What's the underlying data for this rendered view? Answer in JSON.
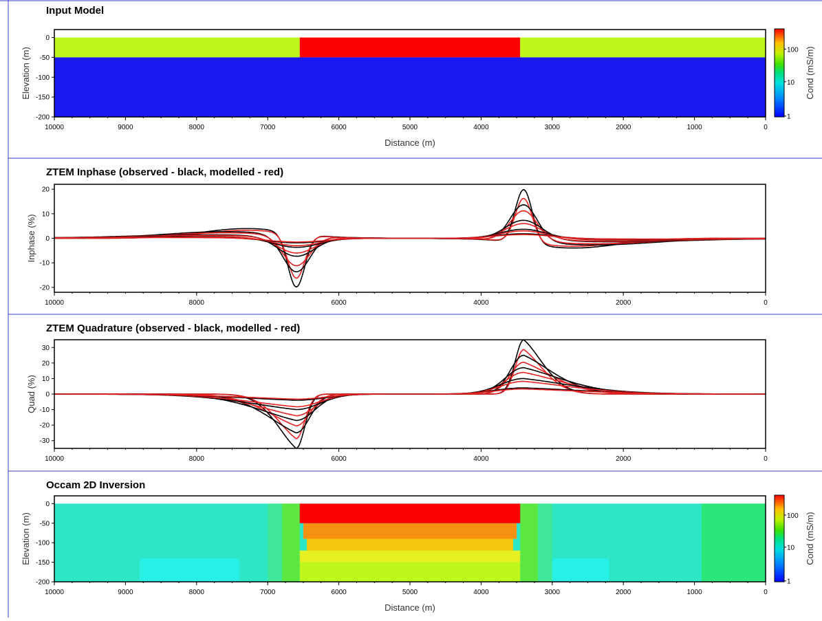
{
  "chart_data": [
    {
      "type": "heatmap",
      "title": "Input Model",
      "xlabel": "Distance (m)",
      "ylabel": "Elevation (m)",
      "xlim": [
        10000,
        0
      ],
      "ylim": [
        -200,
        20
      ],
      "xticks": [
        10000,
        9000,
        8000,
        7000,
        6000,
        5000,
        4000,
        3000,
        2000,
        1000,
        0
      ],
      "yticks": [
        0,
        -50,
        -100,
        -150,
        -200
      ],
      "colorbar": {
        "label": "Cond (mS/m)",
        "ticks": [
          "100",
          "10",
          "1"
        ],
        "scale": "log"
      },
      "regions": [
        {
          "x": [
            10000,
            6550
          ],
          "y": [
            0,
            -50
          ],
          "color": "#bef81a"
        },
        {
          "x": [
            6550,
            3450
          ],
          "y": [
            0,
            -50
          ],
          "color": "#fa0202"
        },
        {
          "x": [
            3450,
            0
          ],
          "y": [
            0,
            -50
          ],
          "color": "#bef81a"
        },
        {
          "x": [
            10000,
            0
          ],
          "y": [
            -50,
            -200
          ],
          "color": "#1a1af0"
        }
      ]
    },
    {
      "type": "line",
      "title": "ZTEM Inphase (observed - black, modelled - red)",
      "xlabel": "",
      "ylabel": "Inphase (%)",
      "xlim": [
        10000,
        0
      ],
      "ylim": [
        -22,
        22
      ],
      "xticks": [
        10000,
        8000,
        6000,
        4000,
        2000,
        0
      ],
      "yticks": [
        20,
        10,
        0,
        -10,
        -20
      ],
      "anomalies": [
        {
          "center": 6600,
          "peak_amplitudes": [
            -22,
            -15,
            -8,
            -4,
            -2
          ]
        },
        {
          "center": 3400,
          "peak_amplitudes": [
            22,
            15,
            8,
            4,
            2
          ]
        }
      ],
      "series_colors": {
        "observed": "#000000",
        "modelled": "#e82020"
      }
    },
    {
      "type": "line",
      "title": "ZTEM Quadrature (observed - black, modelled - red)",
      "xlabel": "",
      "ylabel": "Quad (%)",
      "xlim": [
        10000,
        0
      ],
      "ylim": [
        -35,
        35
      ],
      "xticks": [
        10000,
        8000,
        6000,
        4000,
        2000,
        0
      ],
      "yticks": [
        30,
        20,
        10,
        0,
        -10,
        -20,
        -30
      ],
      "anomalies": [
        {
          "center": 6600,
          "peak_amplitudes": [
            -35,
            -25,
            -17,
            -10,
            -4
          ]
        },
        {
          "center": 3400,
          "peak_amplitudes": [
            35,
            25,
            17,
            10,
            4
          ]
        }
      ],
      "series_colors": {
        "observed": "#000000",
        "modelled": "#e82020"
      }
    },
    {
      "type": "heatmap",
      "title": "Occam 2D Inversion",
      "xlabel": "Distance (m)",
      "ylabel": "Elevation (m)",
      "xlim": [
        10000,
        0
      ],
      "ylim": [
        -200,
        20
      ],
      "xticks": [
        10000,
        9000,
        8000,
        7000,
        6000,
        5000,
        4000,
        3000,
        2000,
        1000,
        0
      ],
      "yticks": [
        0,
        -50,
        -100,
        -150,
        -200
      ],
      "colorbar": {
        "label": "Cond (mS/m)",
        "ticks": [
          "100",
          "10",
          "1"
        ],
        "scale": "log"
      },
      "regions": [
        {
          "x": [
            10000,
            0
          ],
          "y": [
            0,
            -200
          ],
          "color": "#2ce6c6"
        },
        {
          "x": [
            8800,
            7400
          ],
          "y": [
            -140,
            -200
          ],
          "color": "#28f0e6"
        },
        {
          "x": [
            3000,
            2200
          ],
          "y": [
            -140,
            -200
          ],
          "color": "#28f0e6"
        },
        {
          "x": [
            900,
            0
          ],
          "y": [
            0,
            -200
          ],
          "color": "#2ce67a"
        },
        {
          "x": [
            7000,
            6800
          ],
          "y": [
            0,
            -200
          ],
          "color": "#3fe89a"
        },
        {
          "x": [
            6800,
            6550
          ],
          "y": [
            0,
            -200
          ],
          "color": "#5ce640"
        },
        {
          "x": [
            3450,
            3200
          ],
          "y": [
            0,
            -200
          ],
          "color": "#5ce640"
        },
        {
          "x": [
            3200,
            3000
          ],
          "y": [
            0,
            -200
          ],
          "color": "#3fe89a"
        },
        {
          "x": [
            6550,
            3450
          ],
          "y": [
            -150,
            -200
          ],
          "color": "#bef81a"
        },
        {
          "x": [
            6550,
            3450
          ],
          "y": [
            -120,
            -150
          ],
          "color": "#e6f020"
        },
        {
          "x": [
            6450,
            3550
          ],
          "y": [
            -90,
            -120
          ],
          "color": "#f5c810"
        },
        {
          "x": [
            6500,
            3500
          ],
          "y": [
            -50,
            -90
          ],
          "color": "#f59010"
        },
        {
          "x": [
            6550,
            3450
          ],
          "y": [
            0,
            -50
          ],
          "color": "#fa0202"
        }
      ]
    }
  ]
}
